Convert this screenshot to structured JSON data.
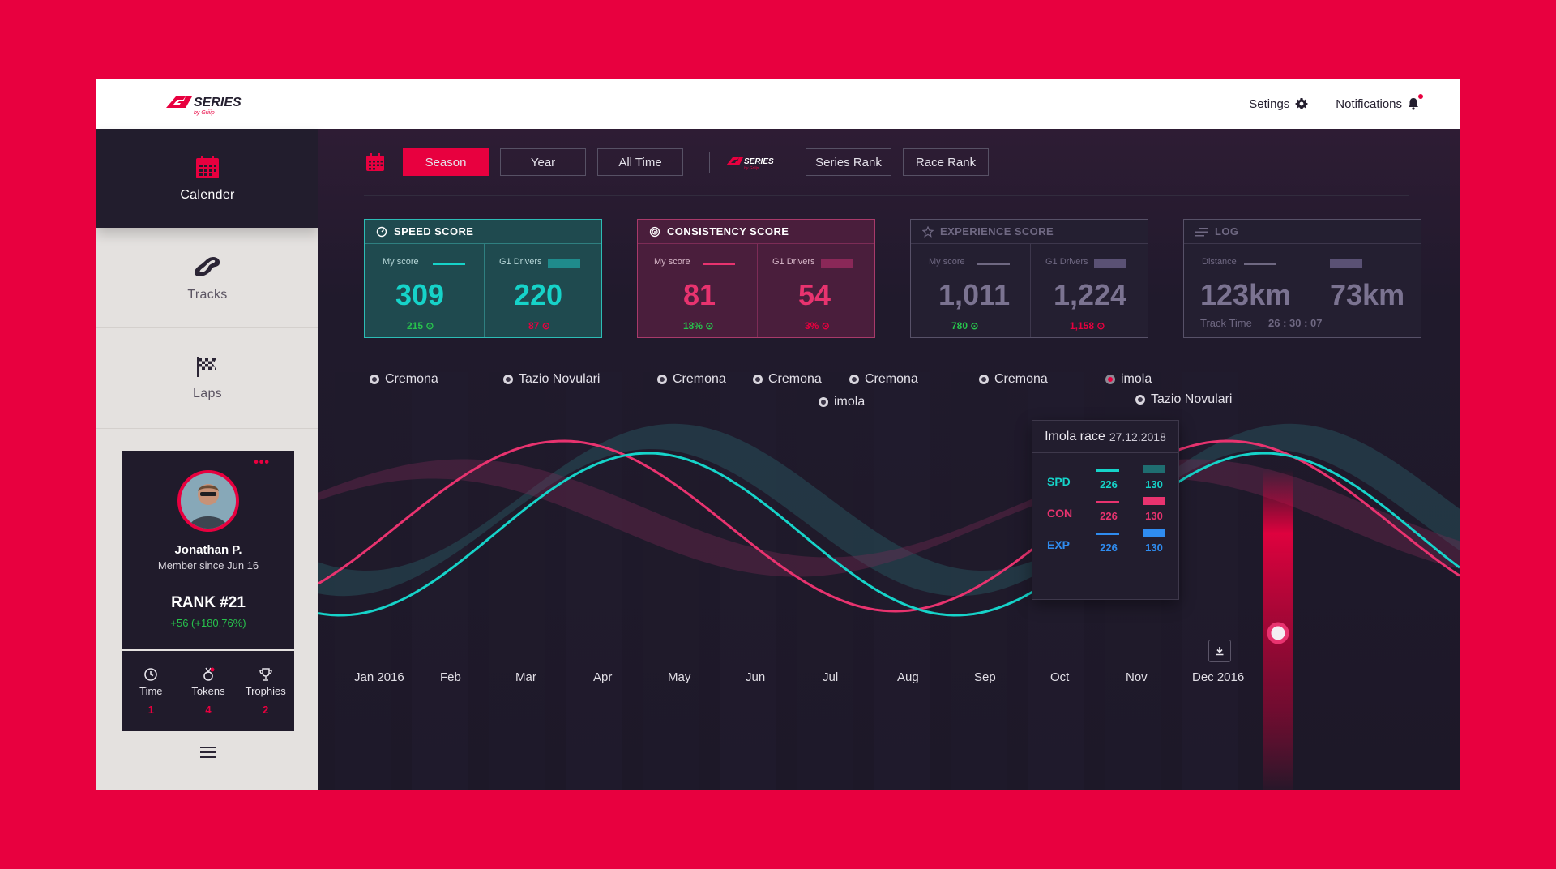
{
  "topbar": {
    "logo_text": "G1 SERIES",
    "logo_sub": "by Griiip",
    "settings_label": "Setings",
    "notifications_label": "Notifications"
  },
  "sidebar": {
    "items": [
      {
        "label": "Calender",
        "icon": "calendar-icon",
        "active": true
      },
      {
        "label": "Tracks",
        "icon": "track-icon",
        "active": false
      },
      {
        "label": "Laps",
        "icon": "checkered-flag-icon",
        "active": false
      }
    ],
    "profile": {
      "name": "Jonathan P.",
      "since": "Member since Jun 16",
      "rank": "RANK #21",
      "change": "+56 (+180.76%)"
    },
    "stats": [
      {
        "label": "Time",
        "value": "1",
        "icon": "clock-icon"
      },
      {
        "label": "Tokens",
        "value": "4",
        "icon": "medal-icon"
      },
      {
        "label": "Trophies",
        "value": "2",
        "icon": "trophy-icon"
      }
    ]
  },
  "filters": {
    "period": [
      "Season",
      "Year",
      "All Time"
    ],
    "active_period": "Season",
    "rank": [
      "Series Rank",
      "Race Rank"
    ]
  },
  "cards": {
    "speed": {
      "title": "SPEED SCORE",
      "my_label": "My score",
      "g1_label": "G1 Drivers",
      "my_value": "309",
      "g1_value": "220",
      "my_sub": "215",
      "g1_sub": "87"
    },
    "consistency": {
      "title": "CONSISTENCY SCORE",
      "my_label": "My score",
      "g1_label": "G1 Drivers",
      "my_value": "81",
      "g1_value": "54",
      "my_sub": "18%",
      "g1_sub": "3%"
    },
    "experience": {
      "title": "EXPERIENCE SCORE",
      "my_label": "My score",
      "g1_label": "G1 Drivers",
      "my_value": "1,011",
      "g1_value": "1,224",
      "my_sub": "780",
      "g1_sub": "1,158"
    },
    "log": {
      "title": "LOG",
      "distance_label": "Distance",
      "my_value": "123km",
      "g1_value": "73km",
      "track_time_label": "Track Time",
      "track_time_value": "26 : 30 : 07"
    }
  },
  "tracks": [
    "Cremona",
    "Tazio Novulari",
    "Cremona",
    "Cremona",
    "imola",
    "Cremona",
    "Cremona",
    "imola",
    "Tazio Novulari"
  ],
  "months": [
    "Jan 2016",
    "Feb",
    "Mar",
    "Apr",
    "May",
    "Jun",
    "Jul",
    "Aug",
    "Sep",
    "Oct",
    "Nov",
    "Dec 2016"
  ],
  "tooltip": {
    "title": "Imola race",
    "date": "27.12.2018",
    "rows": [
      {
        "key": "SPD",
        "my": "226",
        "g1": "130"
      },
      {
        "key": "CON",
        "my": "226",
        "g1": "130"
      },
      {
        "key": "EXP",
        "my": "226",
        "g1": "130"
      }
    ]
  },
  "colors": {
    "brand": "#e8003f",
    "speed": "#16d3c9",
    "consistency": "#e8336f",
    "experience": "#2f8cf0",
    "positive": "#27c24c"
  }
}
